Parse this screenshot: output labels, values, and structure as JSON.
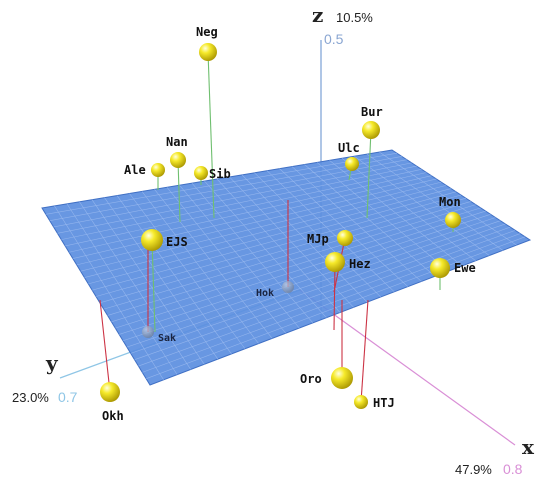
{
  "chart_data": {
    "type": "scatter",
    "title": "",
    "axes": {
      "x": {
        "letter": "x",
        "percent": "47.9%",
        "tick": "0.8"
      },
      "y": {
        "letter": "y",
        "percent": "23.0%",
        "tick": "0.7"
      },
      "z": {
        "letter": "z",
        "percent": "10.5%",
        "tick": "0.5"
      }
    },
    "points": [
      {
        "label": "Neg"
      },
      {
        "label": "Bur"
      },
      {
        "label": "Ulc"
      },
      {
        "label": "Nan"
      },
      {
        "label": "Ale"
      },
      {
        "label": "Sib"
      },
      {
        "label": "Mon"
      },
      {
        "label": "EJS"
      },
      {
        "label": "MJp"
      },
      {
        "label": "Hez"
      },
      {
        "label": "Ewe"
      },
      {
        "label": "Hok"
      },
      {
        "label": "Sak"
      },
      {
        "label": "Oro"
      },
      {
        "label": "HTJ"
      },
      {
        "label": "Okh"
      }
    ],
    "colors": {
      "plane": "#5b8ee0",
      "grid": "#8fb4ee",
      "sphere": "#f2e21a",
      "x_axis": "#d98fd6",
      "y_axis": "#8fc6e6",
      "z_axis": "#7aa0d6"
    }
  }
}
